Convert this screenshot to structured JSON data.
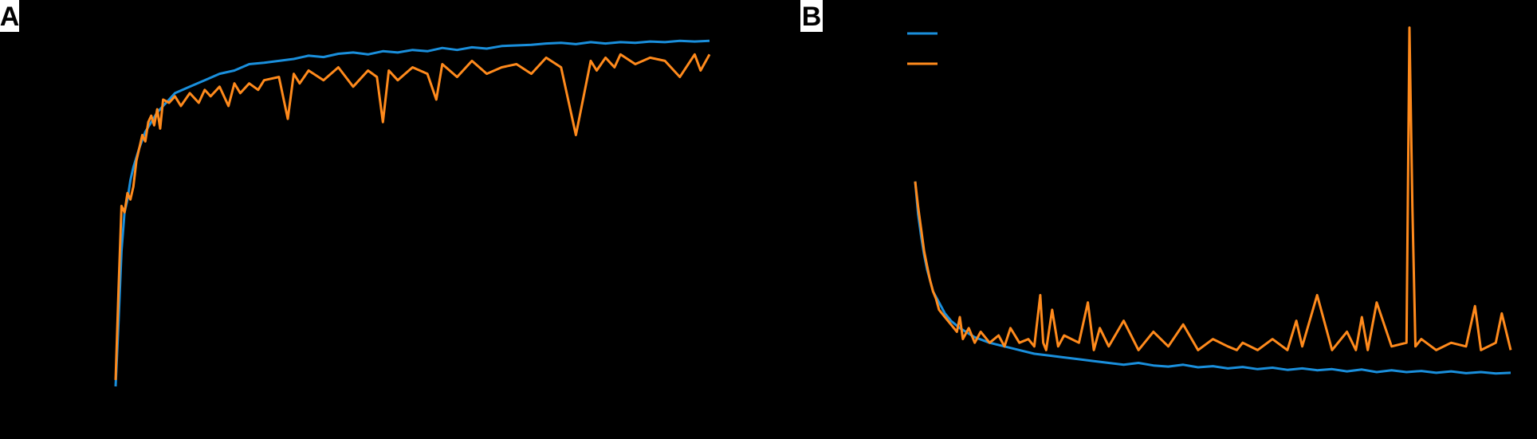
{
  "colors": {
    "background": "#000000",
    "train": "#1a8fdc",
    "validation": "#ff8a1c",
    "label_bg": "#ffffff",
    "label_fg": "#000000"
  },
  "panels": [
    {
      "label": "A"
    },
    {
      "label": "B"
    }
  ],
  "chart_data": [
    {
      "panel": "A",
      "type": "line",
      "title": "",
      "xlabel": "",
      "ylabel": "",
      "xlim": [
        0,
        200
      ],
      "ylim": [
        0.45,
        1.0
      ],
      "series": [
        {
          "color": "#1a8fdc",
          "x": [
            0,
            1,
            2,
            3,
            4,
            5,
            6,
            8,
            10,
            12,
            14,
            16,
            18,
            20,
            25,
            30,
            35,
            40,
            45,
            50,
            55,
            60,
            65,
            70,
            75,
            80,
            85,
            90,
            95,
            100,
            105,
            110,
            115,
            120,
            125,
            130,
            135,
            140,
            145,
            150,
            155,
            160,
            165,
            170,
            175,
            180,
            185,
            190,
            195,
            200
          ],
          "y": [
            0.45,
            0.55,
            0.66,
            0.72,
            0.74,
            0.77,
            0.79,
            0.82,
            0.845,
            0.86,
            0.875,
            0.885,
            0.895,
            0.905,
            0.915,
            0.925,
            0.935,
            0.94,
            0.95,
            0.952,
            0.955,
            0.958,
            0.963,
            0.961,
            0.966,
            0.968,
            0.965,
            0.97,
            0.968,
            0.972,
            0.97,
            0.975,
            0.972,
            0.976,
            0.974,
            0.978,
            0.979,
            0.98,
            0.982,
            0.983,
            0.981,
            0.984,
            0.982,
            0.984,
            0.983,
            0.985,
            0.984,
            0.986,
            0.985,
            0.986
          ]
        },
        {
          "color": "#ff8a1c",
          "x": [
            0,
            1,
            2,
            3,
            4,
            5,
            6,
            7,
            8,
            9,
            10,
            11,
            12,
            13,
            14,
            15,
            16,
            18,
            20,
            22,
            25,
            28,
            30,
            32,
            35,
            38,
            40,
            42,
            45,
            48,
            50,
            55,
            58,
            60,
            62,
            65,
            70,
            75,
            80,
            85,
            88,
            90,
            92,
            95,
            100,
            105,
            108,
            110,
            115,
            120,
            125,
            130,
            135,
            140,
            145,
            150,
            155,
            160,
            162,
            165,
            168,
            170,
            175,
            180,
            185,
            190,
            195,
            197,
            200
          ],
          "y": [
            0.46,
            0.6,
            0.73,
            0.72,
            0.75,
            0.74,
            0.76,
            0.8,
            0.82,
            0.84,
            0.83,
            0.86,
            0.87,
            0.855,
            0.88,
            0.85,
            0.895,
            0.89,
            0.9,
            0.885,
            0.905,
            0.89,
            0.91,
            0.9,
            0.915,
            0.885,
            0.92,
            0.905,
            0.92,
            0.91,
            0.925,
            0.93,
            0.865,
            0.935,
            0.92,
            0.94,
            0.925,
            0.945,
            0.915,
            0.94,
            0.93,
            0.86,
            0.94,
            0.925,
            0.945,
            0.935,
            0.895,
            0.95,
            0.93,
            0.955,
            0.935,
            0.945,
            0.95,
            0.935,
            0.96,
            0.945,
            0.84,
            0.955,
            0.94,
            0.96,
            0.945,
            0.965,
            0.95,
            0.96,
            0.955,
            0.93,
            0.965,
            0.94,
            0.965
          ]
        }
      ]
    },
    {
      "panel": "B",
      "type": "line",
      "title": "",
      "xlabel": "",
      "ylabel": "",
      "xlim": [
        0,
        200
      ],
      "ylim": [
        0.0,
        1.0
      ],
      "legend_position": "top-left",
      "series": [
        {
          "color": "#1a8fdc",
          "x": [
            0,
            1,
            2,
            3,
            4,
            5,
            6,
            8,
            10,
            12,
            15,
            18,
            20,
            25,
            30,
            35,
            40,
            45,
            50,
            55,
            60,
            65,
            70,
            75,
            80,
            85,
            90,
            95,
            100,
            105,
            110,
            115,
            120,
            125,
            130,
            135,
            140,
            145,
            150,
            155,
            160,
            165,
            170,
            175,
            180,
            185,
            190,
            195,
            200
          ],
          "y": [
            0.57,
            0.48,
            0.42,
            0.37,
            0.33,
            0.3,
            0.27,
            0.24,
            0.21,
            0.19,
            0.17,
            0.155,
            0.145,
            0.13,
            0.12,
            0.11,
            0.1,
            0.095,
            0.09,
            0.085,
            0.08,
            0.075,
            0.07,
            0.075,
            0.068,
            0.065,
            0.07,
            0.063,
            0.066,
            0.06,
            0.064,
            0.058,
            0.062,
            0.056,
            0.06,
            0.055,
            0.058,
            0.052,
            0.057,
            0.05,
            0.055,
            0.05,
            0.053,
            0.048,
            0.052,
            0.047,
            0.05,
            0.046,
            0.048
          ]
        },
        {
          "color": "#ff8a1c",
          "x": [
            0,
            1,
            2,
            3,
            4,
            5,
            6,
            7,
            8,
            10,
            12,
            14,
            15,
            16,
            18,
            20,
            22,
            25,
            28,
            30,
            32,
            35,
            38,
            40,
            42,
            43,
            44,
            46,
            48,
            50,
            55,
            58,
            60,
            62,
            65,
            70,
            75,
            80,
            85,
            90,
            95,
            100,
            105,
            108,
            110,
            115,
            120,
            125,
            128,
            130,
            135,
            140,
            145,
            148,
            150,
            152,
            155,
            160,
            165,
            166,
            167,
            168,
            170,
            175,
            180,
            185,
            188,
            190,
            195,
            197,
            200
          ],
          "y": [
            0.57,
            0.5,
            0.44,
            0.38,
            0.34,
            0.3,
            0.27,
            0.25,
            0.22,
            0.2,
            0.18,
            0.16,
            0.2,
            0.14,
            0.17,
            0.13,
            0.16,
            0.13,
            0.15,
            0.12,
            0.17,
            0.13,
            0.14,
            0.12,
            0.26,
            0.13,
            0.11,
            0.22,
            0.12,
            0.15,
            0.13,
            0.24,
            0.11,
            0.17,
            0.12,
            0.19,
            0.11,
            0.16,
            0.12,
            0.18,
            0.11,
            0.14,
            0.12,
            0.11,
            0.13,
            0.11,
            0.14,
            0.11,
            0.19,
            0.12,
            0.26,
            0.11,
            0.16,
            0.11,
            0.2,
            0.11,
            0.24,
            0.12,
            0.13,
            0.99,
            0.5,
            0.12,
            0.14,
            0.11,
            0.13,
            0.12,
            0.23,
            0.11,
            0.13,
            0.21,
            0.11
          ]
        }
      ]
    }
  ]
}
